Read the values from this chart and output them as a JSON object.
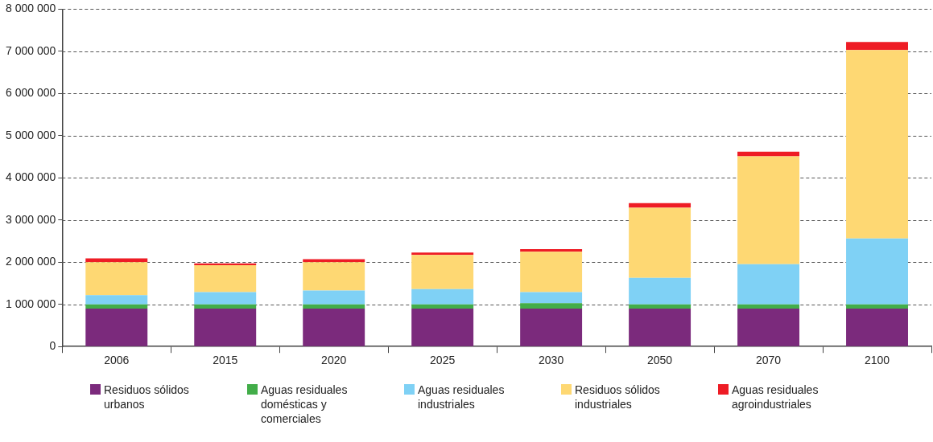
{
  "chart_data": {
    "type": "bar",
    "stacked": true,
    "categories": [
      "2006",
      "2015",
      "2020",
      "2025",
      "2030",
      "2050",
      "2070",
      "2100"
    ],
    "series": [
      {
        "name": "Residuos sólidos urbanos",
        "color": "#7b2a7c",
        "values": [
          900000,
          900000,
          900000,
          900000,
          900000,
          900000,
          900000,
          900000
        ]
      },
      {
        "name": "Aguas residuales domésticas y comerciales",
        "color": "#42ad49",
        "values": [
          100000,
          100000,
          100000,
          100000,
          130000,
          100000,
          100000,
          100000
        ]
      },
      {
        "name": "Aguas residuales industriales",
        "color": "#7fd1f5",
        "values": [
          220000,
          290000,
          330000,
          360000,
          260000,
          630000,
          950000,
          1560000
        ]
      },
      {
        "name": "Residuos sólidos industriales",
        "color": "#fed873",
        "values": [
          780000,
          640000,
          670000,
          810000,
          960000,
          1660000,
          2560000,
          4470000
        ]
      },
      {
        "name": "Aguas residuales agroindustriales",
        "color": "#ee1c25",
        "values": [
          90000,
          40000,
          70000,
          60000,
          60000,
          110000,
          110000,
          190000
        ]
      }
    ],
    "ylim": [
      0,
      8000000
    ],
    "yticks": [
      {
        "value": 0,
        "label": "0"
      },
      {
        "value": 1000000,
        "label": "1 000 000"
      },
      {
        "value": 2000000,
        "label": "2 000 000"
      },
      {
        "value": 3000000,
        "label": "3 000 000"
      },
      {
        "value": 4000000,
        "label": "4 000 000"
      },
      {
        "value": 5000000,
        "label": "5 000 000"
      },
      {
        "value": 6000000,
        "label": "6 000 000"
      },
      {
        "value": 7000000,
        "label": "7 000 000"
      },
      {
        "value": 8000000,
        "label": "8 000 000"
      }
    ],
    "grid": "y",
    "legend": "bottom"
  }
}
